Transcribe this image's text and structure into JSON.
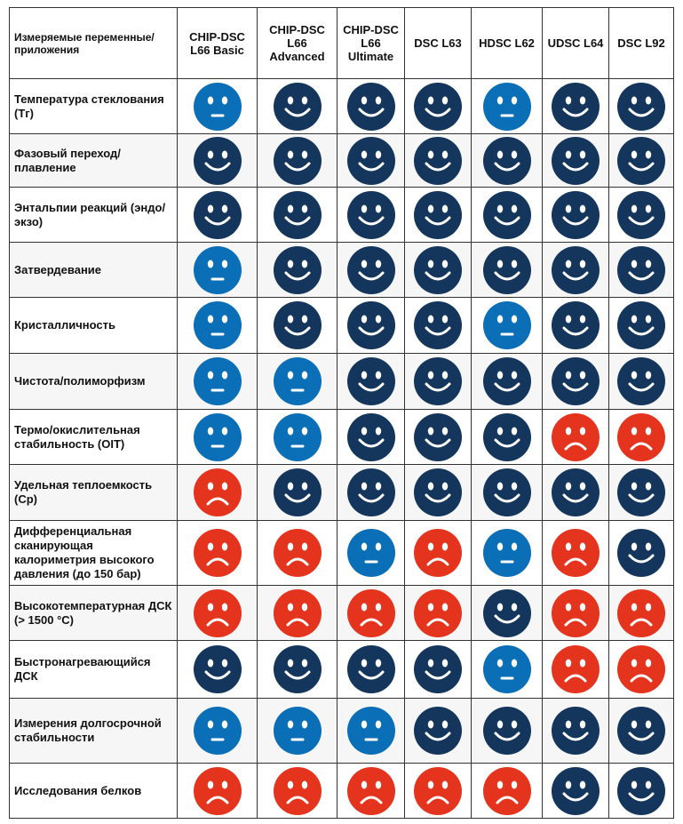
{
  "table": {
    "header": [
      "Измеряемые переменные/ приложения",
      "CHIP-DSC L66 Basic",
      "CHIP-DSC L66 Advanced",
      "CHIP-DSC L66 Ultimate",
      "DSC L63",
      "HDSC L62",
      "UDSC L64",
      "DSC L92"
    ],
    "rows": [
      {
        "label": "Температура стеклования (Tг)",
        "ratings": [
          1,
          2,
          2,
          2,
          1,
          2,
          2
        ]
      },
      {
        "label": "Фазовый переход/плавление",
        "ratings": [
          2,
          2,
          2,
          2,
          2,
          2,
          2
        ]
      },
      {
        "label": "Энтальпии реакций (эндо/экзо)",
        "ratings": [
          2,
          2,
          2,
          2,
          2,
          2,
          2
        ]
      },
      {
        "label": "Затвердевание",
        "ratings": [
          1,
          2,
          2,
          2,
          2,
          2,
          2
        ]
      },
      {
        "label": "Кристалличность",
        "ratings": [
          1,
          2,
          2,
          2,
          1,
          2,
          2
        ]
      },
      {
        "label": "Чистота/полиморфизм",
        "ratings": [
          1,
          1,
          2,
          2,
          2,
          2,
          2
        ]
      },
      {
        "label": "Термо/окислительная стабильность (OIT)",
        "ratings": [
          1,
          1,
          2,
          2,
          2,
          0,
          0
        ]
      },
      {
        "label": "Удельная теплоемкость (Cp)",
        "ratings": [
          0,
          2,
          2,
          2,
          2,
          2,
          2
        ]
      },
      {
        "label": "Дифференциальная сканирующая калориметрия высокого давления (до 150 бар)",
        "ratings": [
          0,
          0,
          1,
          0,
          1,
          0,
          2
        ]
      },
      {
        "label": "Высокотемпературная ДСК (> 1500 °C)",
        "ratings": [
          0,
          0,
          0,
          0,
          2,
          0,
          0
        ]
      },
      {
        "label": "Быстронагревающийся ДСК",
        "ratings": [
          2,
          2,
          2,
          2,
          1,
          0,
          0
        ]
      },
      {
        "label": "Измерения долгосрочной стабильности",
        "ratings": [
          1,
          1,
          1,
          2,
          2,
          2,
          2
        ]
      },
      {
        "label": "Исследования белков",
        "ratings": [
          0,
          0,
          0,
          0,
          0,
          2,
          2
        ]
      }
    ]
  }
}
